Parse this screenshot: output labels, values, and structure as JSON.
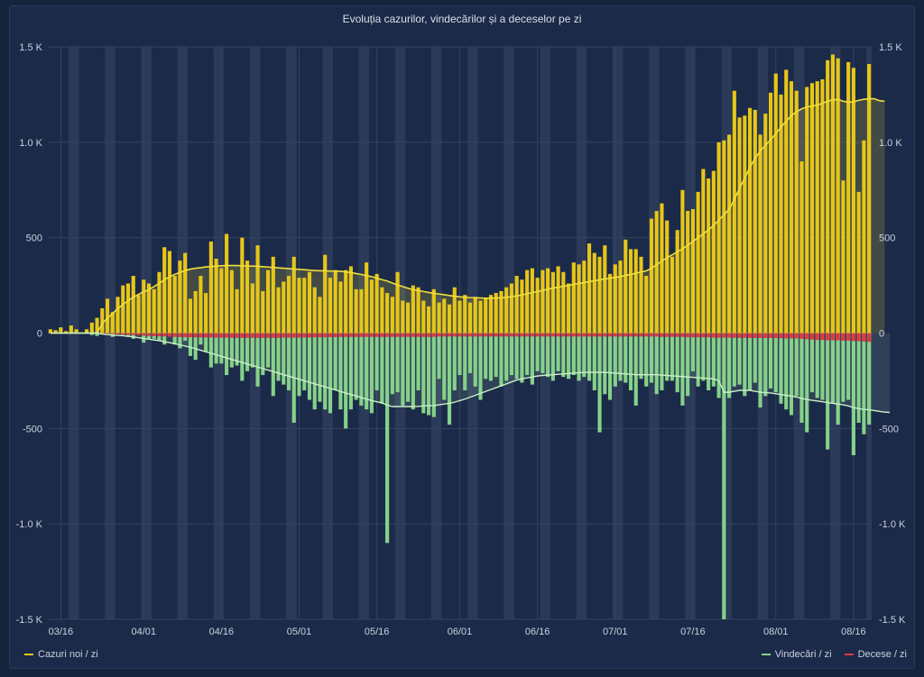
{
  "chart_data": {
    "type": "bar",
    "title": "Evoluția cazurilor, vindecărilor și a deceselor pe zi",
    "xlabel": "",
    "ylabel": "",
    "ylim": [
      -1500,
      1500
    ],
    "y_tick_values": [
      -1500,
      -1000,
      -500,
      0,
      500,
      1000,
      1500
    ],
    "y_tick_labels": [
      "-1.5 K",
      "-1.0 K",
      "-500",
      "0",
      "500",
      "1.0 K",
      "1.5 K"
    ],
    "x_start_date": "03/14",
    "x_tick_labels": [
      "03/16",
      "04/01",
      "04/16",
      "05/01",
      "05/16",
      "06/01",
      "06/16",
      "07/01",
      "07/16",
      "08/01",
      "08/16"
    ],
    "x_tick_day_index": [
      2,
      18,
      33,
      48,
      63,
      79,
      94,
      109,
      124,
      140,
      155
    ],
    "weekend_day_index": [
      4,
      5,
      11,
      12,
      18,
      19,
      25,
      26,
      32,
      33,
      39,
      40,
      46,
      47,
      53,
      54,
      60,
      61,
      67,
      68,
      74,
      75,
      81,
      82,
      88,
      89,
      95,
      96,
      102,
      103,
      109,
      110,
      116,
      117,
      123,
      124,
      130,
      131,
      137,
      138,
      144,
      145,
      151,
      152,
      158
    ],
    "grid": true,
    "legend_position": "bottom",
    "colors": {
      "cases": "#e6c619",
      "cases_avg": "#f2df3a",
      "recoveries": "#86d18a",
      "recoveries_avg": "#c9f0c6",
      "deaths": "#e03a3f",
      "weekend_band": "#2e3d5c",
      "grid": "#33435f"
    },
    "series": [
      {
        "name": "Cazuri noi / zi",
        "values": [
          20,
          15,
          30,
          10,
          40,
          20,
          0,
          20,
          55,
          80,
          130,
          180,
          110,
          190,
          250,
          260,
          300,
          200,
          280,
          260,
          230,
          320,
          450,
          430,
          300,
          380,
          420,
          180,
          220,
          300,
          210,
          480,
          390,
          340,
          520,
          330,
          230,
          500,
          380,
          260,
          460,
          220,
          330,
          400,
          240,
          270,
          300,
          400,
          290,
          290,
          320,
          240,
          190,
          410,
          290,
          330,
          270,
          330,
          350,
          230,
          230,
          370,
          280,
          310,
          240,
          210,
          190,
          320,
          170,
          160,
          250,
          240,
          170,
          140,
          230,
          160,
          180,
          150,
          240,
          170,
          200,
          160,
          190,
          170,
          180,
          200,
          210,
          220,
          240,
          260,
          300,
          280,
          330,
          340,
          290,
          330,
          340,
          320,
          350,
          320,
          260,
          370,
          360,
          380,
          470,
          420,
          400,
          460,
          310,
          360,
          380,
          490,
          440,
          440,
          400,
          300,
          600,
          640,
          680,
          590,
          400,
          540,
          750,
          640,
          650,
          740,
          860,
          810,
          850,
          1000,
          1010,
          1040,
          1270,
          1130,
          1140,
          1180,
          1170,
          1040,
          1150,
          1260,
          1360,
          1250,
          1380,
          1320,
          1270,
          900,
          1290,
          1310,
          1320,
          1330,
          1430,
          1460,
          1440,
          800,
          1420,
          1390,
          740,
          1010,
          1410
        ]
      },
      {
        "name": "Cazuri noi / zi — medie",
        "values": [
          0,
          0,
          0,
          0,
          0,
          0,
          0,
          0,
          0,
          0,
          50,
          78,
          103,
          128,
          150,
          170,
          188,
          203,
          216,
          228,
          244,
          260,
          280,
          295,
          308,
          318,
          328,
          335,
          340,
          343,
          347,
          349,
          351,
          353,
          354,
          354,
          354,
          353,
          352,
          351,
          350,
          348,
          346,
          344,
          342,
          340,
          338,
          336,
          334,
          332,
          330,
          328,
          327,
          326,
          325,
          325,
          324,
          321,
          317,
          312,
          307,
          301,
          296,
          288,
          280,
          273,
          262,
          252,
          244,
          235,
          228,
          223,
          218,
          213,
          208,
          205,
          201,
          197,
          193,
          190,
          188,
          186,
          185,
          184,
          183,
          183,
          184,
          185,
          188,
          191,
          195,
          200,
          206,
          212,
          218,
          224,
          230,
          236,
          241,
          245,
          250,
          255,
          260,
          265,
          270,
          275,
          279,
          284,
          288,
          292,
          296,
          302,
          308,
          314,
          320,
          326,
          340,
          358,
          378,
          395,
          410,
          426,
          442,
          460,
          480,
          500,
          520,
          540,
          565,
          592,
          620,
          650,
          700,
          760,
          810,
          870,
          915,
          955,
          985,
          1013,
          1045,
          1080,
          1110,
          1140,
          1160,
          1175,
          1185,
          1190,
          1195,
          1205,
          1215,
          1222,
          1225,
          1215,
          1210,
          1212,
          1220,
          1225,
          1228,
          1228,
          1218,
          1215
        ]
      },
      {
        "name": "Vindecări / zi",
        "values": [
          0,
          0,
          0,
          0,
          0,
          0,
          0,
          0,
          -10,
          -15,
          0,
          0,
          -20,
          0,
          -10,
          -20,
          -30,
          0,
          -50,
          -30,
          -30,
          -40,
          -60,
          -10,
          -60,
          -80,
          -40,
          -120,
          -140,
          -60,
          -100,
          -180,
          -160,
          -160,
          -220,
          -180,
          -170,
          -250,
          -200,
          -180,
          -280,
          -220,
          -180,
          -330,
          -250,
          -270,
          -300,
          -470,
          -330,
          -300,
          -350,
          -400,
          -360,
          -400,
          -420,
          -300,
          -400,
          -500,
          -400,
          -350,
          -380,
          -400,
          -420,
          -300,
          -370,
          -1100,
          -320,
          -310,
          -380,
          -360,
          -400,
          -300,
          -420,
          -430,
          -440,
          -240,
          -350,
          -480,
          -300,
          -220,
          -300,
          -210,
          -280,
          -350,
          -240,
          -250,
          -230,
          -280,
          -250,
          -220,
          -240,
          -260,
          -220,
          -270,
          -200,
          -210,
          -230,
          -250,
          -200,
          -230,
          -240,
          -220,
          -250,
          -230,
          -250,
          -300,
          -520,
          -320,
          -350,
          -280,
          -250,
          -260,
          -300,
          -380,
          -240,
          -280,
          -260,
          -320,
          -300,
          -250,
          -250,
          -310,
          -380,
          -330,
          -200,
          -280,
          -250,
          -300,
          -280,
          -340,
          -1500,
          -340,
          -280,
          -270,
          -330,
          -300,
          -260,
          -390,
          -330,
          -290,
          -310,
          -370,
          -400,
          -430,
          -330,
          -470,
          -520,
          -310,
          -340,
          -350,
          -610,
          -370,
          -480,
          -360,
          -350,
          -640,
          -470,
          -530,
          -480,
          -510,
          -550,
          -330,
          -410,
          -380,
          -400,
          -420,
          -460
        ]
      },
      {
        "name": "Vindecări / zi — medie",
        "values": [
          0,
          0,
          0,
          0,
          0,
          0,
          0,
          0,
          0,
          0,
          -5,
          -8,
          -10,
          -12,
          -14,
          -17,
          -20,
          -24,
          -28,
          -32,
          -36,
          -40,
          -45,
          -50,
          -56,
          -62,
          -68,
          -75,
          -82,
          -90,
          -98,
          -106,
          -114,
          -122,
          -130,
          -138,
          -146,
          -154,
          -162,
          -170,
          -178,
          -186,
          -194,
          -202,
          -210,
          -218,
          -226,
          -234,
          -242,
          -250,
          -258,
          -266,
          -274,
          -282,
          -290,
          -298,
          -306,
          -314,
          -322,
          -330,
          -338,
          -346,
          -354,
          -360,
          -366,
          -378,
          -385,
          -385,
          -385,
          -385,
          -385,
          -384,
          -382,
          -380,
          -380,
          -376,
          -372,
          -368,
          -362,
          -354,
          -346,
          -336,
          -326,
          -316,
          -306,
          -296,
          -286,
          -276,
          -266,
          -256,
          -246,
          -240,
          -235,
          -230,
          -225,
          -222,
          -220,
          -218,
          -216,
          -214,
          -212,
          -210,
          -208,
          -206,
          -206,
          -206,
          -206,
          -206,
          -208,
          -210,
          -212,
          -214,
          -216,
          -218,
          -218,
          -218,
          -218,
          -218,
          -220,
          -222,
          -224,
          -226,
          -228,
          -230,
          -232,
          -234,
          -236,
          -238,
          -240,
          -250,
          -310,
          -310,
          -305,
          -300,
          -300,
          -300,
          -305,
          -310,
          -312,
          -314,
          -318,
          -322,
          -326,
          -330,
          -336,
          -342,
          -348,
          -352,
          -356,
          -360,
          -364,
          -368,
          -372,
          -376,
          -382,
          -390,
          -396,
          -400,
          -402,
          -406,
          -410,
          -414,
          -416
        ]
      },
      {
        "name": "Decese / zi",
        "values": [
          0,
          0,
          0,
          0,
          0,
          0,
          0,
          0,
          -1,
          -2,
          -3,
          -4,
          -5,
          -6,
          -8,
          -10,
          -10,
          -12,
          -14,
          -15,
          -16,
          -17,
          -18,
          -19,
          -20,
          -21,
          -22,
          -22,
          -22,
          -23,
          -23,
          -23,
          -24,
          -24,
          -24,
          -25,
          -25,
          -25,
          -25,
          -25,
          -25,
          -25,
          -25,
          -25,
          -25,
          -24,
          -24,
          -24,
          -24,
          -23,
          -23,
          -22,
          -22,
          -22,
          -21,
          -21,
          -20,
          -20,
          -20,
          -20,
          -20,
          -20,
          -20,
          -20,
          -20,
          -20,
          -20,
          -20,
          -20,
          -20,
          -20,
          -20,
          -20,
          -20,
          -20,
          -18,
          -18,
          -18,
          -18,
          -18,
          -18,
          -18,
          -18,
          -18,
          -18,
          -18,
          -18,
          -18,
          -18,
          -18,
          -18,
          -18,
          -18,
          -18,
          -18,
          -18,
          -18,
          -18,
          -18,
          -18,
          -18,
          -18,
          -18,
          -18,
          -18,
          -18,
          -18,
          -18,
          -18,
          -18,
          -18,
          -18,
          -18,
          -18,
          -18,
          -18,
          -18,
          -18,
          -20,
          -20,
          -20,
          -20,
          -20,
          -22,
          -22,
          -22,
          -22,
          -22,
          -24,
          -24,
          -24,
          -24,
          -25,
          -25,
          -25,
          -26,
          -26,
          -26,
          -26,
          -26,
          -26,
          -27,
          -28,
          -28,
          -28,
          -30,
          -32,
          -34,
          -36,
          -36,
          -38,
          -38,
          -38,
          -40,
          -40,
          -42,
          -42,
          -44,
          -46,
          -46,
          -48,
          -48,
          -48,
          -48,
          -48,
          -48,
          -48
        ]
      }
    ]
  },
  "legend": {
    "cases_label": "Cazuri noi / zi",
    "recoveries_label": "Vindecări / zi",
    "deaths_label": "Decese / zi"
  }
}
